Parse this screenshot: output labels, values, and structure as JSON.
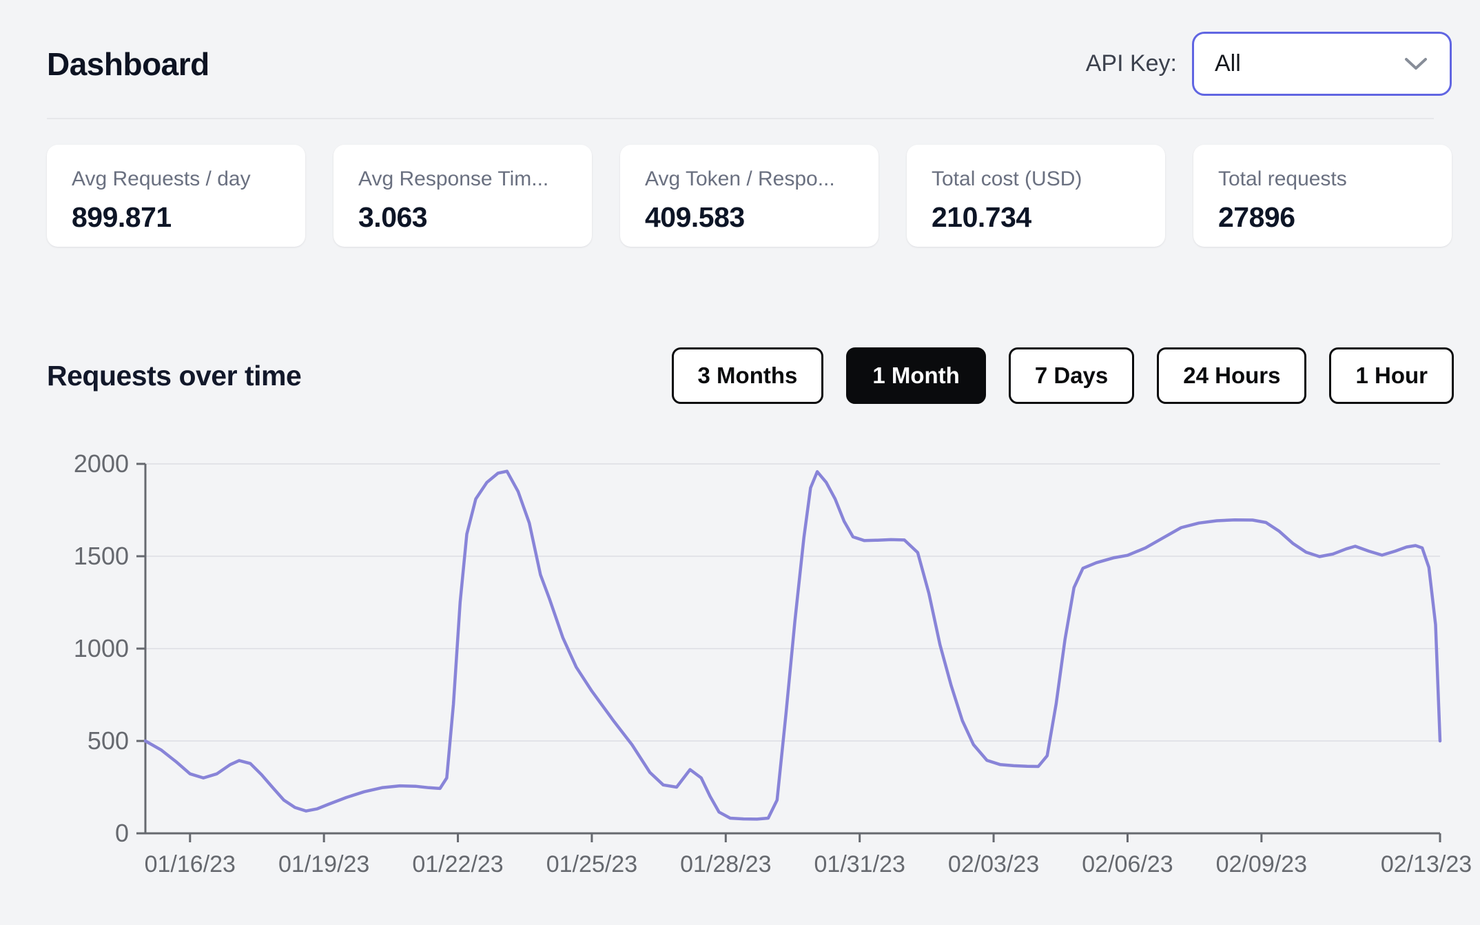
{
  "page": {
    "title": "Dashboard"
  },
  "header": {
    "api_key_label": "API Key:",
    "api_key_value": "All"
  },
  "stats": [
    {
      "label": "Avg Requests / day",
      "value": "899.871"
    },
    {
      "label": "Avg Response Tim...",
      "value": "3.063"
    },
    {
      "label": "Avg Token / Respo...",
      "value": "409.583"
    },
    {
      "label": "Total cost (USD)",
      "value": "210.734"
    },
    {
      "label": "Total requests",
      "value": "27896"
    }
  ],
  "section": {
    "title": "Requests over time"
  },
  "time_ranges": [
    {
      "label": "3 Months",
      "active": false
    },
    {
      "label": "1 Month",
      "active": true
    },
    {
      "label": "7 Days",
      "active": false
    },
    {
      "label": "24 Hours",
      "active": false
    },
    {
      "label": "1 Hour",
      "active": false
    }
  ],
  "colors": {
    "background": "#f3f4f6",
    "line": "#8884d8",
    "grid": "#e2e3e8",
    "axis": "#66696f",
    "tick_text": "#66696f",
    "select_border": "#6065e2",
    "button_border": "#0a0b0d"
  },
  "chart_data": {
    "type": "line",
    "title": "Requests over time",
    "xlabel": "",
    "ylabel": "",
    "ylim": [
      0,
      2000
    ],
    "xlim_days": [
      0,
      29
    ],
    "grid": "horizontal",
    "legend": "none",
    "y_ticks": [
      0,
      500,
      1000,
      1500,
      2000
    ],
    "x_ticks": [
      {
        "t": 1,
        "label": "01/16/23"
      },
      {
        "t": 4,
        "label": "01/19/23"
      },
      {
        "t": 7,
        "label": "01/22/23"
      },
      {
        "t": 10,
        "label": "01/25/23"
      },
      {
        "t": 13,
        "label": "01/28/23"
      },
      {
        "t": 16,
        "label": "01/31/23"
      },
      {
        "t": 19,
        "label": "02/03/23"
      },
      {
        "t": 22,
        "label": "02/06/23"
      },
      {
        "t": 25,
        "label": "02/09/23"
      },
      {
        "t": 29,
        "label": "02/13/23"
      }
    ],
    "series": [
      {
        "name": "requests",
        "color": "#8884d8",
        "points": [
          [
            0,
            500
          ],
          [
            0.35,
            452
          ],
          [
            0.7,
            385
          ],
          [
            1,
            322
          ],
          [
            1.3,
            300
          ],
          [
            1.6,
            322
          ],
          [
            1.9,
            372
          ],
          [
            2.1,
            394
          ],
          [
            2.35,
            378
          ],
          [
            2.6,
            318
          ],
          [
            2.85,
            248
          ],
          [
            3.1,
            180
          ],
          [
            3.35,
            140
          ],
          [
            3.6,
            121
          ],
          [
            3.85,
            133
          ],
          [
            4.1,
            157
          ],
          [
            4.5,
            194
          ],
          [
            4.9,
            225
          ],
          [
            5.3,
            247
          ],
          [
            5.7,
            257
          ],
          [
            6.05,
            255
          ],
          [
            6.35,
            247
          ],
          [
            6.6,
            243
          ],
          [
            6.75,
            300
          ],
          [
            6.9,
            700
          ],
          [
            7.05,
            1250
          ],
          [
            7.2,
            1620
          ],
          [
            7.4,
            1810
          ],
          [
            7.65,
            1900
          ],
          [
            7.9,
            1950
          ],
          [
            8.1,
            1960
          ],
          [
            8.35,
            1850
          ],
          [
            8.6,
            1680
          ],
          [
            8.85,
            1400
          ],
          [
            9.05,
            1270
          ],
          [
            9.35,
            1060
          ],
          [
            9.65,
            900
          ],
          [
            10,
            770
          ],
          [
            10.5,
            605
          ],
          [
            10.9,
            480
          ],
          [
            11.3,
            330
          ],
          [
            11.6,
            262
          ],
          [
            11.9,
            250
          ],
          [
            12.2,
            345
          ],
          [
            12.45,
            300
          ],
          [
            12.65,
            200
          ],
          [
            12.85,
            115
          ],
          [
            13.1,
            82
          ],
          [
            13.4,
            78
          ],
          [
            13.7,
            77
          ],
          [
            13.95,
            82
          ],
          [
            14.15,
            180
          ],
          [
            14.35,
            650
          ],
          [
            14.55,
            1150
          ],
          [
            14.75,
            1600
          ],
          [
            14.9,
            1870
          ],
          [
            15.05,
            1958
          ],
          [
            15.25,
            1900
          ],
          [
            15.45,
            1810
          ],
          [
            15.65,
            1690
          ],
          [
            15.85,
            1605
          ],
          [
            16.1,
            1585
          ],
          [
            16.4,
            1587
          ],
          [
            16.7,
            1590
          ],
          [
            17,
            1588
          ],
          [
            17.3,
            1520
          ],
          [
            17.55,
            1300
          ],
          [
            17.8,
            1020
          ],
          [
            18.05,
            800
          ],
          [
            18.3,
            610
          ],
          [
            18.55,
            480
          ],
          [
            18.85,
            395
          ],
          [
            19.15,
            372
          ],
          [
            19.45,
            366
          ],
          [
            19.75,
            363
          ],
          [
            20,
            362
          ],
          [
            20.2,
            420
          ],
          [
            20.4,
            700
          ],
          [
            20.6,
            1050
          ],
          [
            20.8,
            1330
          ],
          [
            21,
            1435
          ],
          [
            21.3,
            1465
          ],
          [
            21.7,
            1492
          ],
          [
            22,
            1505
          ],
          [
            22.4,
            1545
          ],
          [
            22.8,
            1600
          ],
          [
            23.2,
            1655
          ],
          [
            23.6,
            1680
          ],
          [
            24,
            1692
          ],
          [
            24.4,
            1697
          ],
          [
            24.8,
            1696
          ],
          [
            25.1,
            1683
          ],
          [
            25.4,
            1635
          ],
          [
            25.7,
            1570
          ],
          [
            26,
            1522
          ],
          [
            26.3,
            1498
          ],
          [
            26.6,
            1512
          ],
          [
            26.9,
            1540
          ],
          [
            27.1,
            1554
          ],
          [
            27.4,
            1528
          ],
          [
            27.7,
            1506
          ],
          [
            28,
            1528
          ],
          [
            28.25,
            1550
          ],
          [
            28.45,
            1558
          ],
          [
            28.6,
            1545
          ],
          [
            28.75,
            1440
          ],
          [
            28.9,
            1130
          ],
          [
            29,
            500
          ]
        ]
      }
    ]
  }
}
